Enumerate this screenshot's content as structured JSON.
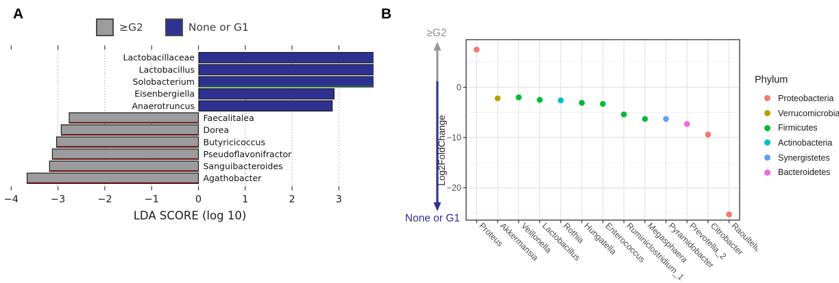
{
  "figure": {
    "panel_a_label": "A",
    "panel_b_label": "B"
  },
  "panel_a": {
    "legend": {
      "items": [
        {
          "label": "≥G2",
          "color": "#9C9C9C"
        },
        {
          "label": "None or G1",
          "color": "#2E3192"
        }
      ]
    }
  },
  "panel_b": {
    "arrow_up_label": "≥G2",
    "arrow_down_label": "None or G1",
    "arrow_up_color": "#999999",
    "arrow_down_color": "#2E3192",
    "legend": {
      "title": "Phylum",
      "items": [
        {
          "label": "Proteobacteria",
          "color": "#F8766D"
        },
        {
          "label": "Verrucomicrobia",
          "color": "#B79F00"
        },
        {
          "label": "Firmicutes",
          "color": "#00BA38"
        },
        {
          "label": "Actinobacteria",
          "color": "#00BFC4"
        },
        {
          "label": "Synergistetes",
          "color": "#619CFF"
        },
        {
          "label": "Bacteroidetes",
          "color": "#F564E3"
        }
      ]
    }
  },
  "chart_data": [
    {
      "type": "bar",
      "orientation": "horizontal",
      "title": "",
      "xlabel": "LDA SCORE (log 10)",
      "xticks": [
        -4,
        -3,
        -2,
        -1,
        0,
        1,
        2,
        3
      ],
      "xlim": [
        -4.15,
        3.95
      ],
      "grid": "dotted-vertical",
      "legend_entries": [
        "≥G2",
        "None or G1"
      ],
      "colors": {
        "≥G2": "#9C9C9C",
        "None or G1": "#2E3192"
      },
      "bars": [
        {
          "taxon": "Lactobacillaceae",
          "lda": 3.83,
          "group": "None or G1",
          "edge_bottom": null
        },
        {
          "taxon": "Lactobacillus",
          "lda": 3.83,
          "group": "None or G1",
          "edge_bottom": null
        },
        {
          "taxon": "Solobacterium",
          "lda": 3.74,
          "group": "None or G1",
          "edge_bottom": "#0B7A3C"
        },
        {
          "taxon": "Eisenbergiella",
          "lda": 2.89,
          "group": "None or G1",
          "edge_bottom": null
        },
        {
          "taxon": "Anaerotruncus",
          "lda": 2.85,
          "group": "None or G1",
          "edge_bottom": null
        },
        {
          "taxon": "Faecalitalea",
          "lda": -2.76,
          "group": "≥G2",
          "edge_bottom": "#7E1113"
        },
        {
          "taxon": "Dorea",
          "lda": -2.93,
          "group": "≥G2",
          "edge_bottom": "#7E1113"
        },
        {
          "taxon": "Butyricicoccus",
          "lda": -3.03,
          "group": "≥G2",
          "edge_bottom": "#7E1113"
        },
        {
          "taxon": "Pseudoflavonifractor",
          "lda": -3.12,
          "group": "≥G2",
          "edge_bottom": "#7E1113"
        },
        {
          "taxon": "Sanguibacteroides",
          "lda": -3.18,
          "group": "≥G2",
          "edge_bottom": "#7E1113"
        },
        {
          "taxon": "Agathobacter",
          "lda": -3.66,
          "group": "≥G2",
          "edge_bottom": "#7E1113"
        }
      ]
    },
    {
      "type": "scatter",
      "title": "",
      "xlabel": "",
      "ylabel": "Log2FoldChange",
      "yticks": [
        0,
        -10,
        -20
      ],
      "ylim": [
        -26.4,
        9.5
      ],
      "grid": true,
      "legend_title": "Phylum",
      "legend_position": "right",
      "x_categories": [
        "Proteus",
        "Akkermansia",
        "Veillonella",
        "Lactobacillus",
        "Rothia",
        "Hungatella",
        "Enterococcus",
        "Ruminiclostridium_1",
        "Megasphaera",
        "Pyramidobacter",
        "Prevotella_2",
        "Citrobacter",
        "Raoultella"
      ],
      "points": [
        {
          "genus": "Proteus",
          "log2fc": 7.5,
          "phylum": "Proteobacteria"
        },
        {
          "genus": "Akkermansia",
          "log2fc": -2.2,
          "phylum": "Verrucomicrobia"
        },
        {
          "genus": "Veillonella",
          "log2fc": -2.0,
          "phylum": "Firmicutes"
        },
        {
          "genus": "Lactobacillus",
          "log2fc": -2.5,
          "phylum": "Firmicutes"
        },
        {
          "genus": "Rothia",
          "log2fc": -2.6,
          "phylum": "Actinobacteria"
        },
        {
          "genus": "Hungatella",
          "log2fc": -3.1,
          "phylum": "Firmicutes"
        },
        {
          "genus": "Enterococcus",
          "log2fc": -3.3,
          "phylum": "Firmicutes"
        },
        {
          "genus": "Ruminiclostridium_1",
          "log2fc": -5.4,
          "phylum": "Firmicutes"
        },
        {
          "genus": "Megasphaera",
          "log2fc": -6.3,
          "phylum": "Firmicutes"
        },
        {
          "genus": "Pyramidobacter",
          "log2fc": -6.3,
          "phylum": "Synergistetes"
        },
        {
          "genus": "Prevotella_2",
          "log2fc": -7.3,
          "phylum": "Bacteroidetes"
        },
        {
          "genus": "Citrobacter",
          "log2fc": -9.4,
          "phylum": "Proteobacteria"
        },
        {
          "genus": "Raoultella",
          "log2fc": -25.3,
          "phylum": "Proteobacteria"
        }
      ],
      "phylum_colors": {
        "Proteobacteria": "#F8766D",
        "Verrucomicrobia": "#B79F00",
        "Firmicutes": "#00BA38",
        "Actinobacteria": "#00BFC4",
        "Synergistetes": "#619CFF",
        "Bacteroidetes": "#F564E3"
      }
    }
  ]
}
